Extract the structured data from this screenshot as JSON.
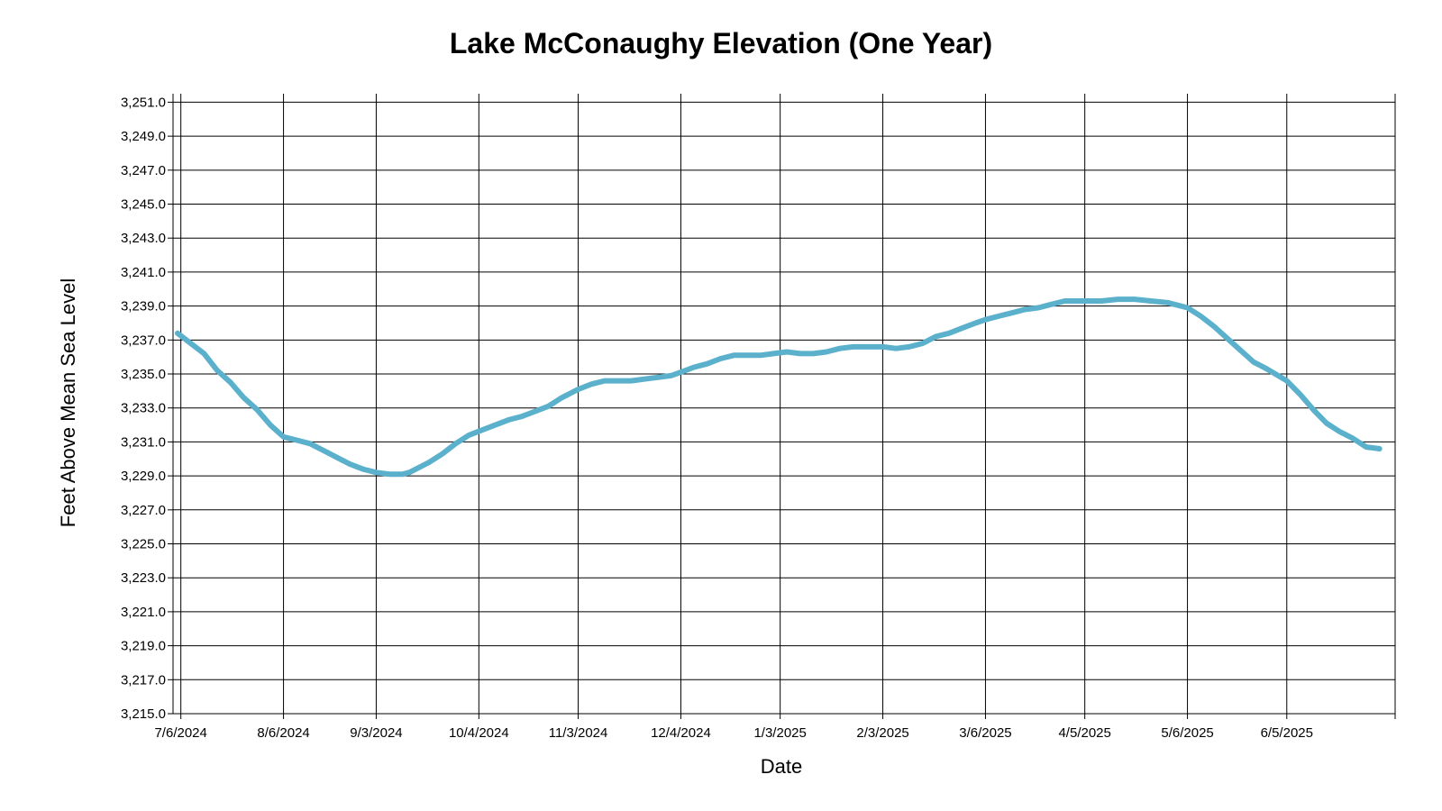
{
  "chart_data": {
    "type": "line",
    "title": "Lake McConaughy Elevation (One Year)",
    "xlabel": "Date",
    "ylabel": "Feet Above Mean Sea Level",
    "ylim": [
      3215.0,
      3251.5
    ],
    "xlim": [
      "2024-07-05",
      "2025-07-05"
    ],
    "grid": true,
    "legend": "none",
    "line_color": "#5bb1cc",
    "y_ticks": [
      "3,215.0",
      "3,217.0",
      "3,219.0",
      "3,221.0",
      "3,223.0",
      "3,225.0",
      "3,227.0",
      "3,229.0",
      "3,231.0",
      "3,233.0",
      "3,235.0",
      "3,237.0",
      "3,239.0",
      "3,241.0",
      "3,243.0",
      "3,245.0",
      "3,247.0",
      "3,249.0",
      "3,251.0"
    ],
    "x_ticks": [
      {
        "date": "2024-07-06",
        "label": "7/6/2024"
      },
      {
        "date": "2024-08-06",
        "label": "8/6/2024"
      },
      {
        "date": "2024-09-03",
        "label": "9/3/2024"
      },
      {
        "date": "2024-10-04",
        "label": "10/4/2024"
      },
      {
        "date": "2024-11-03",
        "label": "11/3/2024"
      },
      {
        "date": "2024-12-04",
        "label": "12/4/2024"
      },
      {
        "date": "2025-01-03",
        "label": "1/3/2025"
      },
      {
        "date": "2025-02-03",
        "label": "2/3/2025"
      },
      {
        "date": "2025-03-06",
        "label": "3/6/2025"
      },
      {
        "date": "2025-04-05",
        "label": "4/5/2025"
      },
      {
        "date": "2025-05-06",
        "label": "5/6/2025"
      },
      {
        "date": "2025-06-05",
        "label": "6/5/2025"
      }
    ],
    "series": [
      {
        "x": [
          "2024-07-05",
          "2024-07-09",
          "2024-07-13",
          "2024-07-17",
          "2024-07-21",
          "2024-07-25",
          "2024-07-29",
          "2024-08-02",
          "2024-08-06",
          "2024-08-10",
          "2024-08-14",
          "2024-08-18",
          "2024-08-22",
          "2024-08-26",
          "2024-08-30",
          "2024-09-03",
          "2024-09-07",
          "2024-09-11",
          "2024-09-13",
          "2024-09-15",
          "2024-09-19",
          "2024-09-23",
          "2024-09-27",
          "2024-10-01",
          "2024-10-05",
          "2024-10-09",
          "2024-10-13",
          "2024-10-17",
          "2024-10-21",
          "2024-10-25",
          "2024-10-29",
          "2024-11-03",
          "2024-11-07",
          "2024-11-11",
          "2024-11-15",
          "2024-11-19",
          "2024-11-23",
          "2024-11-27",
          "2024-12-01",
          "2024-12-04",
          "2024-12-08",
          "2024-12-12",
          "2024-12-16",
          "2024-12-20",
          "2024-12-24",
          "2024-12-28",
          "2025-01-01",
          "2025-01-05",
          "2025-01-09",
          "2025-01-13",
          "2025-01-17",
          "2025-01-21",
          "2025-01-25",
          "2025-01-29",
          "2025-02-03",
          "2025-02-07",
          "2025-02-11",
          "2025-02-15",
          "2025-02-19",
          "2025-02-23",
          "2025-02-27",
          "2025-03-03",
          "2025-03-06",
          "2025-03-10",
          "2025-03-14",
          "2025-03-18",
          "2025-03-22",
          "2025-03-26",
          "2025-03-30",
          "2025-04-05",
          "2025-04-10",
          "2025-04-15",
          "2025-04-20",
          "2025-04-25",
          "2025-04-30",
          "2025-05-06",
          "2025-05-10",
          "2025-05-14",
          "2025-05-18",
          "2025-05-22",
          "2025-05-26",
          "2025-05-30",
          "2025-06-05",
          "2025-06-09",
          "2025-06-13",
          "2025-06-17",
          "2025-06-21",
          "2025-06-25",
          "2025-06-29",
          "2025-07-03"
        ],
        "values": [
          3237.4,
          3236.8,
          3236.2,
          3235.2,
          3234.5,
          3233.6,
          3232.9,
          3232.0,
          3231.3,
          3231.1,
          3230.9,
          3230.5,
          3230.1,
          3229.7,
          3229.4,
          3229.2,
          3229.1,
          3229.1,
          3229.2,
          3229.4,
          3229.8,
          3230.3,
          3230.9,
          3231.4,
          3231.7,
          3232.0,
          3232.3,
          3232.5,
          3232.8,
          3233.1,
          3233.6,
          3234.1,
          3234.4,
          3234.6,
          3234.6,
          3234.6,
          3234.7,
          3234.8,
          3234.9,
          3235.1,
          3235.4,
          3235.6,
          3235.9,
          3236.1,
          3236.1,
          3236.1,
          3236.2,
          3236.3,
          3236.2,
          3236.2,
          3236.3,
          3236.5,
          3236.6,
          3236.6,
          3236.6,
          3236.5,
          3236.6,
          3236.8,
          3237.2,
          3237.4,
          3237.7,
          3238.0,
          3238.2,
          3238.4,
          3238.6,
          3238.8,
          3238.9,
          3239.1,
          3239.3,
          3239.3,
          3239.3,
          3239.4,
          3239.4,
          3239.3,
          3239.2,
          3238.9,
          3238.4,
          3237.8,
          3237.1,
          3236.4,
          3235.7,
          3235.3,
          3234.6,
          3233.8,
          3232.9,
          3232.1,
          3231.6,
          3231.2,
          3230.7,
          3230.6
        ]
      }
    ]
  }
}
